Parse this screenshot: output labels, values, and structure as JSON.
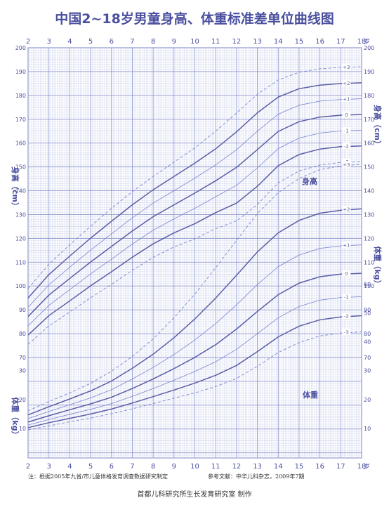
{
  "chart_data": {
    "type": "line",
    "title": "中国2~18岁男童身高、体重标准差单位曲线图",
    "x_tick_labels": [
      "2",
      "3",
      "4",
      "5",
      "6",
      "7",
      "8",
      "9",
      "10",
      "11",
      "12",
      "13",
      "14",
      "15",
      "16",
      "17",
      "18"
    ],
    "x_unit": "岁",
    "xlim": [
      2,
      18
    ],
    "left_ticks": [
      "200",
      "190",
      "180",
      "170",
      "160",
      "150",
      "140",
      "130",
      "120",
      "110",
      "100",
      "90",
      "80",
      "70",
      "30",
      "20",
      "10"
    ],
    "right_ticks": [
      "200",
      "190",
      "180",
      "170",
      "160",
      "150",
      "140",
      "130",
      "120",
      "110",
      "100",
      "90",
      "80",
      "70",
      "60",
      "50",
      "40",
      "30",
      "20",
      "10"
    ],
    "ylabel_height": "身高（cm）",
    "ylabel_weight": "体重（kg）",
    "height_label": "身高",
    "weight_label": "体重",
    "x": [
      2,
      3,
      4,
      5,
      6,
      7,
      8,
      9,
      10,
      11,
      12,
      13,
      14,
      15,
      16,
      17,
      18
    ],
    "height_series": [
      {
        "name": "+3",
        "values": [
          98.9,
          109.2,
          117.3,
          125.1,
          132.6,
          139.6,
          146.0,
          152.0,
          158.0,
          165.0,
          172.6,
          180.5,
          186.5,
          189.7,
          191.2,
          191.8,
          192.0
        ]
      },
      {
        "name": "+2",
        "values": [
          95.0,
          104.8,
          112.6,
          120.1,
          127.2,
          134.1,
          140.4,
          146.0,
          151.6,
          157.6,
          164.7,
          172.7,
          179.3,
          182.8,
          184.3,
          185.0,
          185.3
        ]
      },
      {
        "name": "+1",
        "values": [
          91.1,
          100.5,
          107.9,
          115.1,
          121.9,
          128.6,
          134.8,
          140.0,
          145.3,
          150.9,
          157.2,
          165.0,
          172.1,
          175.9,
          177.6,
          178.3,
          178.6
        ]
      },
      {
        "name": "0",
        "values": [
          87.2,
          96.2,
          103.2,
          110.1,
          116.6,
          123.1,
          129.1,
          134.1,
          139.0,
          144.2,
          149.8,
          157.3,
          164.9,
          169.0,
          170.9,
          171.7,
          172.0
        ]
      },
      {
        "name": "-1",
        "values": [
          83.3,
          91.9,
          98.5,
          105.1,
          111.3,
          117.6,
          123.4,
          128.2,
          132.6,
          137.5,
          142.3,
          149.6,
          157.7,
          162.1,
          164.2,
          165.1,
          165.4
        ]
      },
      {
        "name": "-2",
        "values": [
          79.4,
          87.6,
          93.8,
          100.1,
          106.0,
          112.1,
          117.7,
          122.3,
          126.2,
          130.8,
          134.8,
          141.9,
          150.5,
          155.2,
          157.5,
          158.5,
          158.8
        ]
      },
      {
        "name": "-3",
        "values": [
          75.5,
          83.3,
          89.1,
          95.1,
          100.7,
          106.6,
          112.0,
          116.4,
          119.8,
          124.1,
          127.3,
          134.2,
          143.3,
          148.3,
          150.8,
          151.9,
          152.2
        ]
      }
    ],
    "weight_series": [
      {
        "name": "+3",
        "values": [
          16.1,
          19.3,
          22.3,
          25.6,
          29.8,
          34.9,
          41.0,
          48.3,
          56.5,
          65.6,
          75.1,
          84.4,
          91.6,
          96.5,
          99.6,
          100.9,
          101.4
        ]
      },
      {
        "name": "+2",
        "values": [
          14.7,
          17.5,
          20.2,
          23.0,
          26.4,
          30.8,
          35.7,
          41.4,
          47.9,
          55.1,
          63.0,
          71.1,
          77.7,
          82.0,
          84.5,
          85.5,
          86.0
        ]
      },
      {
        "name": "+1",
        "values": [
          13.4,
          15.9,
          18.2,
          20.6,
          23.4,
          27.1,
          31.1,
          35.6,
          40.6,
          46.3,
          52.8,
          59.8,
          66.0,
          70.0,
          72.3,
          73.2,
          73.5
        ]
      },
      {
        "name": "0",
        "values": [
          12.2,
          14.4,
          16.5,
          18.5,
          20.8,
          23.8,
          27.1,
          30.7,
          34.6,
          39.0,
          44.4,
          50.5,
          56.3,
          60.3,
          62.5,
          63.4,
          63.7
        ]
      },
      {
        "name": "-1",
        "values": [
          11.2,
          13.1,
          14.9,
          16.6,
          18.6,
          21.1,
          23.8,
          26.7,
          29.7,
          33.1,
          37.4,
          42.8,
          48.3,
          52.2,
          54.4,
          55.3,
          55.6
        ]
      },
      {
        "name": "-2",
        "values": [
          10.3,
          12.0,
          13.5,
          15.0,
          16.7,
          18.8,
          21.0,
          23.3,
          25.7,
          28.4,
          31.8,
          36.6,
          41.7,
          45.4,
          47.6,
          48.6,
          49.0
        ]
      },
      {
        "name": "-3",
        "values": [
          9.5,
          10.9,
          12.3,
          13.6,
          15.1,
          16.8,
          18.6,
          20.5,
          22.3,
          24.5,
          27.3,
          31.5,
          36.3,
          39.7,
          42.0,
          43.0,
          43.4
        ]
      }
    ],
    "grid": true,
    "colors": {
      "main": "#5b5ea6",
      "minor": "#c7cdea",
      "grid": "#8f96cf",
      "dashed": "#7b86d0",
      "background": "#ffffff"
    }
  },
  "footnote": {
    "note": "注：根据2005年九省/市儿童体格发育调查数据研究制定",
    "reference": "参考文献：中华儿科杂志，2009年7期"
  },
  "producer": "首都儿科研究所生长发育研究室  制作"
}
